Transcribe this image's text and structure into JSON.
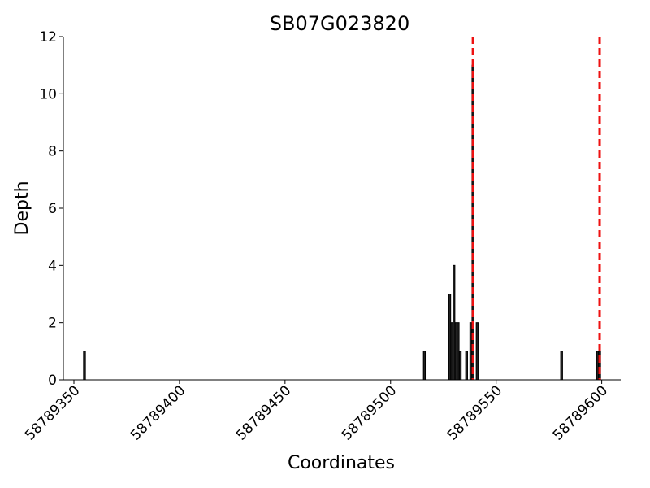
{
  "chart_data": {
    "type": "bar",
    "title": "SB07G023820",
    "xlabel": "Coordinates",
    "ylabel": "Depth",
    "x": [
      58789355,
      58789516,
      58789528,
      58789529,
      58789530,
      58789531,
      58789532,
      58789533,
      58789536,
      58789538,
      58789539,
      58789541,
      58789581,
      58789598,
      58789599
    ],
    "values": [
      1,
      1,
      3,
      2,
      4,
      2,
      2,
      1,
      1,
      2,
      11,
      2,
      1,
      1,
      1
    ],
    "color": "#222222",
    "vlines": [
      58789539,
      58789599
    ],
    "vline_color": "#ee1111",
    "xlim": [
      58789345,
      58789609
    ],
    "xticks": [
      58789350,
      58789400,
      58789450,
      58789500,
      58789550,
      58789600
    ],
    "ylim": [
      0,
      12
    ],
    "yticks": [
      0,
      2,
      4,
      6,
      8,
      10,
      12
    ],
    "grid": false
  }
}
